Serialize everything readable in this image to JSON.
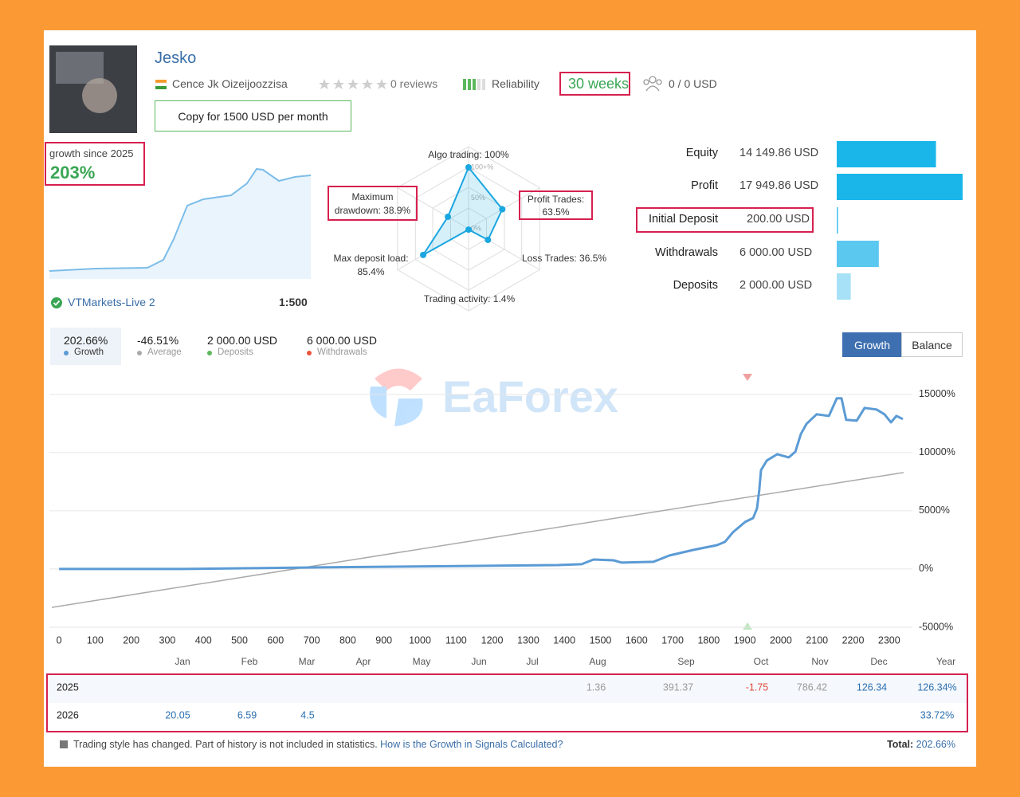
{
  "header": {
    "name": "Jesko",
    "author": "Cence Jk Oizeijoozzisa",
    "reviews": "0 reviews",
    "reliability": "Reliability",
    "weeks": "30 weeks",
    "subscribers": "0 / 0 USD",
    "copy_button": "Copy for 1500 USD per month"
  },
  "growth": {
    "label": "growth since 2025",
    "value": "203%"
  },
  "account": {
    "broker": "VTMarkets-Live 2",
    "leverage": "1:500"
  },
  "radar": {
    "ticks": [
      {
        "value": 100,
        "label": "100+%"
      },
      {
        "value": 50,
        "label": "50%"
      },
      {
        "value": 0,
        "label": "0%"
      }
    ],
    "axes": [
      {
        "label": "Algo trading: 100%",
        "value": 100
      },
      {
        "label": "Profit Trades: 63.5%",
        "value": 63.5
      },
      {
        "label": "Loss Trades: 36.5%",
        "value": 36.5
      },
      {
        "label": "Trading activity: 1.4%",
        "value": 1.4
      },
      {
        "label": "Max deposit load: 85.4%",
        "value": 85.4
      },
      {
        "label": "Maximum drawdown: 38.9%",
        "value": 38.9
      }
    ]
  },
  "stats": [
    {
      "label": "Equity",
      "text": "14 149.86 USD",
      "amount": 14149.86
    },
    {
      "label": "Profit",
      "text": "17 949.86 USD",
      "amount": 17949.86
    },
    {
      "label": "Initial Deposit",
      "text": "200.00 USD",
      "amount": 200
    },
    {
      "label": "Withdrawals",
      "text": "6 000.00 USD",
      "amount": 6000
    },
    {
      "label": "Deposits",
      "text": "2 000.00 USD",
      "amount": 2000
    }
  ],
  "summary": [
    {
      "value": "202.66%",
      "label": "Growth"
    },
    {
      "value": "-46.51%",
      "label": "Average"
    },
    {
      "value": "2 000.00 USD",
      "label": "Deposits"
    },
    {
      "value": "6 000.00 USD",
      "label": "Withdrawals"
    }
  ],
  "tabs": [
    "Growth",
    "Balance"
  ],
  "watermark": "EaForex",
  "chart_data": {
    "type": "line",
    "series": [
      {
        "color": "#5b9bd5",
        "x": [
          0,
          340,
          720,
          1161,
          1382,
          1448,
          1481,
          1536,
          1559,
          1647,
          1691,
          1757,
          1823,
          1845,
          1867,
          1901,
          1923,
          1934,
          1940,
          1945,
          1961,
          1990,
          2022,
          2040,
          2055,
          2071,
          2099,
          2133,
          2155,
          2168,
          2181,
          2210,
          2232,
          2265,
          2287,
          2305,
          2320,
          2338
        ],
        "values": [
          0,
          0,
          140,
          270,
          340,
          410,
          820,
          750,
          550,
          620,
          1160,
          1640,
          2050,
          2330,
          3150,
          4040,
          4380,
          5210,
          6780,
          8490,
          9320,
          9860,
          9590,
          10070,
          11580,
          12470,
          13290,
          13150,
          14660,
          14660,
          12810,
          12740,
          13840,
          13700,
          13290,
          12600,
          13150,
          12880
        ]
      }
    ],
    "trend": {
      "color": "#aaaaaa",
      "x": [
        -20,
        2340
      ],
      "values": [
        -3300,
        8290
      ]
    },
    "xlim": [
      -20,
      2360
    ],
    "xticks": [
      0,
      100,
      200,
      300,
      400,
      500,
      600,
      700,
      800,
      900,
      1000,
      1100,
      1200,
      1300,
      1400,
      1500,
      1600,
      1700,
      1800,
      1900,
      2000,
      2100,
      2200,
      2300
    ],
    "ylim": [
      -5550,
      16700
    ],
    "yticks": [
      {
        "value": -5000,
        "label": "-5000%"
      },
      {
        "value": 0,
        "label": "0%"
      },
      {
        "value": 5000,
        "label": "5000%"
      },
      {
        "value": 10000,
        "label": "10000%"
      },
      {
        "value": 15000,
        "label": "15000%"
      }
    ],
    "grid": true
  },
  "months": [
    "Jan",
    "Feb",
    "Mar",
    "Apr",
    "May",
    "Jun",
    "Jul",
    "Aug",
    "Sep",
    "Oct",
    "Nov",
    "Dec",
    "Year"
  ],
  "table": {
    "rows": [
      {
        "year": "2025",
        "cells": [
          null,
          null,
          null,
          null,
          null,
          null,
          null,
          "1.36",
          "391.37",
          "-1.75",
          "786.42",
          "126.34",
          "126.34%"
        ]
      },
      {
        "year": "2026",
        "cells": [
          "20.05",
          "6.59",
          "4.5",
          null,
          null,
          null,
          null,
          null,
          null,
          null,
          null,
          null,
          "33.72%"
        ]
      }
    ]
  },
  "footer": {
    "note": "Trading style has changed. Part of history is not included in statistics.",
    "link": "How is the Growth in Signals Calculated?",
    "total_label": "Total:",
    "total": "202.66%"
  }
}
